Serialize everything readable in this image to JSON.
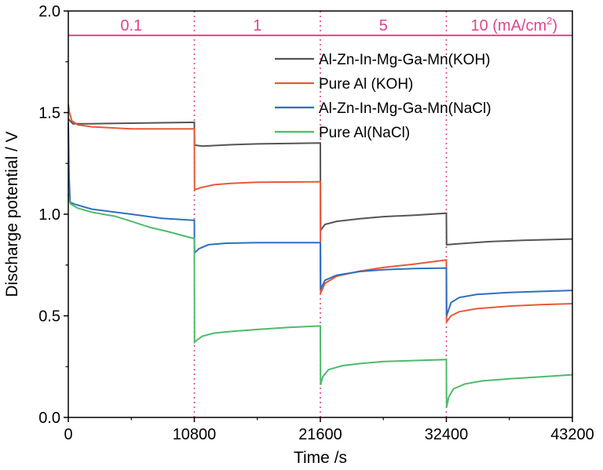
{
  "chart_data": {
    "type": "line",
    "xlabel": "Time /s",
    "ylabel": "Discharge potential / V",
    "xlim": [
      0,
      43200
    ],
    "ylim": [
      0,
      2.0
    ],
    "x_ticks": [
      "0",
      "10800",
      "21600",
      "32400",
      "43200"
    ],
    "y_ticks": [
      "0.0",
      "0.5",
      "1.0",
      "1.5",
      "2.0"
    ],
    "current_density_line_y": 1.88,
    "current_density_labels": [
      "0.1",
      "1",
      "5",
      "10 (mA/cm"
    ],
    "current_density_unit_superscript": "2",
    "current_density_unit_close": ")",
    "segment_dividers": [
      10800,
      21600,
      32400
    ],
    "grid": false,
    "legend_position": "top-right",
    "series": [
      {
        "name": "Al-Zn-In-Mg-Ga-Mn(KOH)",
        "color": "#555555",
        "points": [
          [
            0,
            1.47
          ],
          [
            150,
            1.46
          ],
          [
            400,
            1.445
          ],
          [
            2000,
            1.445
          ],
          [
            5400,
            1.448
          ],
          [
            10800,
            1.452
          ],
          [
            10820,
            1.34
          ],
          [
            11500,
            1.335
          ],
          [
            14000,
            1.342
          ],
          [
            16200,
            1.346
          ],
          [
            21600,
            1.35
          ],
          [
            21620,
            0.92
          ],
          [
            22000,
            0.95
          ],
          [
            23000,
            0.965
          ],
          [
            25000,
            0.978
          ],
          [
            27000,
            0.988
          ],
          [
            29700,
            0.995
          ],
          [
            32400,
            1.005
          ],
          [
            32420,
            0.85
          ],
          [
            33500,
            0.855
          ],
          [
            36000,
            0.865
          ],
          [
            39000,
            0.872
          ],
          [
            43200,
            0.878
          ]
        ]
      },
      {
        "name": "Pure Al (KOH)",
        "color": "#e8593a",
        "points": [
          [
            0,
            1.54
          ],
          [
            100,
            1.5
          ],
          [
            300,
            1.46
          ],
          [
            800,
            1.44
          ],
          [
            2000,
            1.43
          ],
          [
            5400,
            1.42
          ],
          [
            10800,
            1.42
          ],
          [
            10820,
            1.12
          ],
          [
            11300,
            1.13
          ],
          [
            12500,
            1.145
          ],
          [
            14000,
            1.152
          ],
          [
            16200,
            1.157
          ],
          [
            21600,
            1.16
          ],
          [
            21620,
            0.61
          ],
          [
            22000,
            0.66
          ],
          [
            23000,
            0.695
          ],
          [
            25000,
            0.72
          ],
          [
            27000,
            0.738
          ],
          [
            29700,
            0.755
          ],
          [
            32400,
            0.775
          ],
          [
            32420,
            0.47
          ],
          [
            32800,
            0.5
          ],
          [
            33500,
            0.52
          ],
          [
            35000,
            0.535
          ],
          [
            37800,
            0.548
          ],
          [
            40500,
            0.555
          ],
          [
            43200,
            0.56
          ]
        ]
      },
      {
        "name": "Al-Zn-In-Mg-Ga-Mn(NaCl)",
        "color": "#2e6fc0",
        "points": [
          [
            0,
            1.45
          ],
          [
            60,
            1.2
          ],
          [
            150,
            1.06
          ],
          [
            500,
            1.05
          ],
          [
            2000,
            1.025
          ],
          [
            5400,
            1.0
          ],
          [
            8000,
            0.98
          ],
          [
            10800,
            0.97
          ],
          [
            10820,
            0.81
          ],
          [
            11200,
            0.83
          ],
          [
            12000,
            0.85
          ],
          [
            13500,
            0.857
          ],
          [
            16200,
            0.86
          ],
          [
            21600,
            0.86
          ],
          [
            21620,
            0.63
          ],
          [
            22000,
            0.675
          ],
          [
            23000,
            0.7
          ],
          [
            25000,
            0.718
          ],
          [
            27000,
            0.727
          ],
          [
            29700,
            0.733
          ],
          [
            32400,
            0.735
          ],
          [
            32420,
            0.5
          ],
          [
            32800,
            0.565
          ],
          [
            33500,
            0.59
          ],
          [
            35000,
            0.605
          ],
          [
            37800,
            0.615
          ],
          [
            40500,
            0.62
          ],
          [
            43200,
            0.625
          ]
        ]
      },
      {
        "name": "Pure Al(NaCl)",
        "color": "#4dbb6b",
        "points": [
          [
            0,
            1.1
          ],
          [
            60,
            1.07
          ],
          [
            200,
            1.05
          ],
          [
            800,
            1.03
          ],
          [
            2000,
            1.01
          ],
          [
            4000,
            0.99
          ],
          [
            5400,
            0.965
          ],
          [
            7000,
            0.935
          ],
          [
            8500,
            0.915
          ],
          [
            10800,
            0.88
          ],
          [
            10820,
            0.37
          ],
          [
            11000,
            0.38
          ],
          [
            11500,
            0.4
          ],
          [
            12500,
            0.415
          ],
          [
            14000,
            0.423
          ],
          [
            16200,
            0.433
          ],
          [
            18900,
            0.443
          ],
          [
            21600,
            0.45
          ],
          [
            21620,
            0.16
          ],
          [
            21800,
            0.2
          ],
          [
            22300,
            0.235
          ],
          [
            23500,
            0.255
          ],
          [
            25000,
            0.265
          ],
          [
            27000,
            0.275
          ],
          [
            29700,
            0.28
          ],
          [
            32400,
            0.285
          ],
          [
            32420,
            0.05
          ],
          [
            32600,
            0.1
          ],
          [
            33000,
            0.14
          ],
          [
            34000,
            0.165
          ],
          [
            35500,
            0.18
          ],
          [
            37800,
            0.19
          ],
          [
            40500,
            0.2
          ],
          [
            43200,
            0.21
          ]
        ]
      }
    ]
  }
}
